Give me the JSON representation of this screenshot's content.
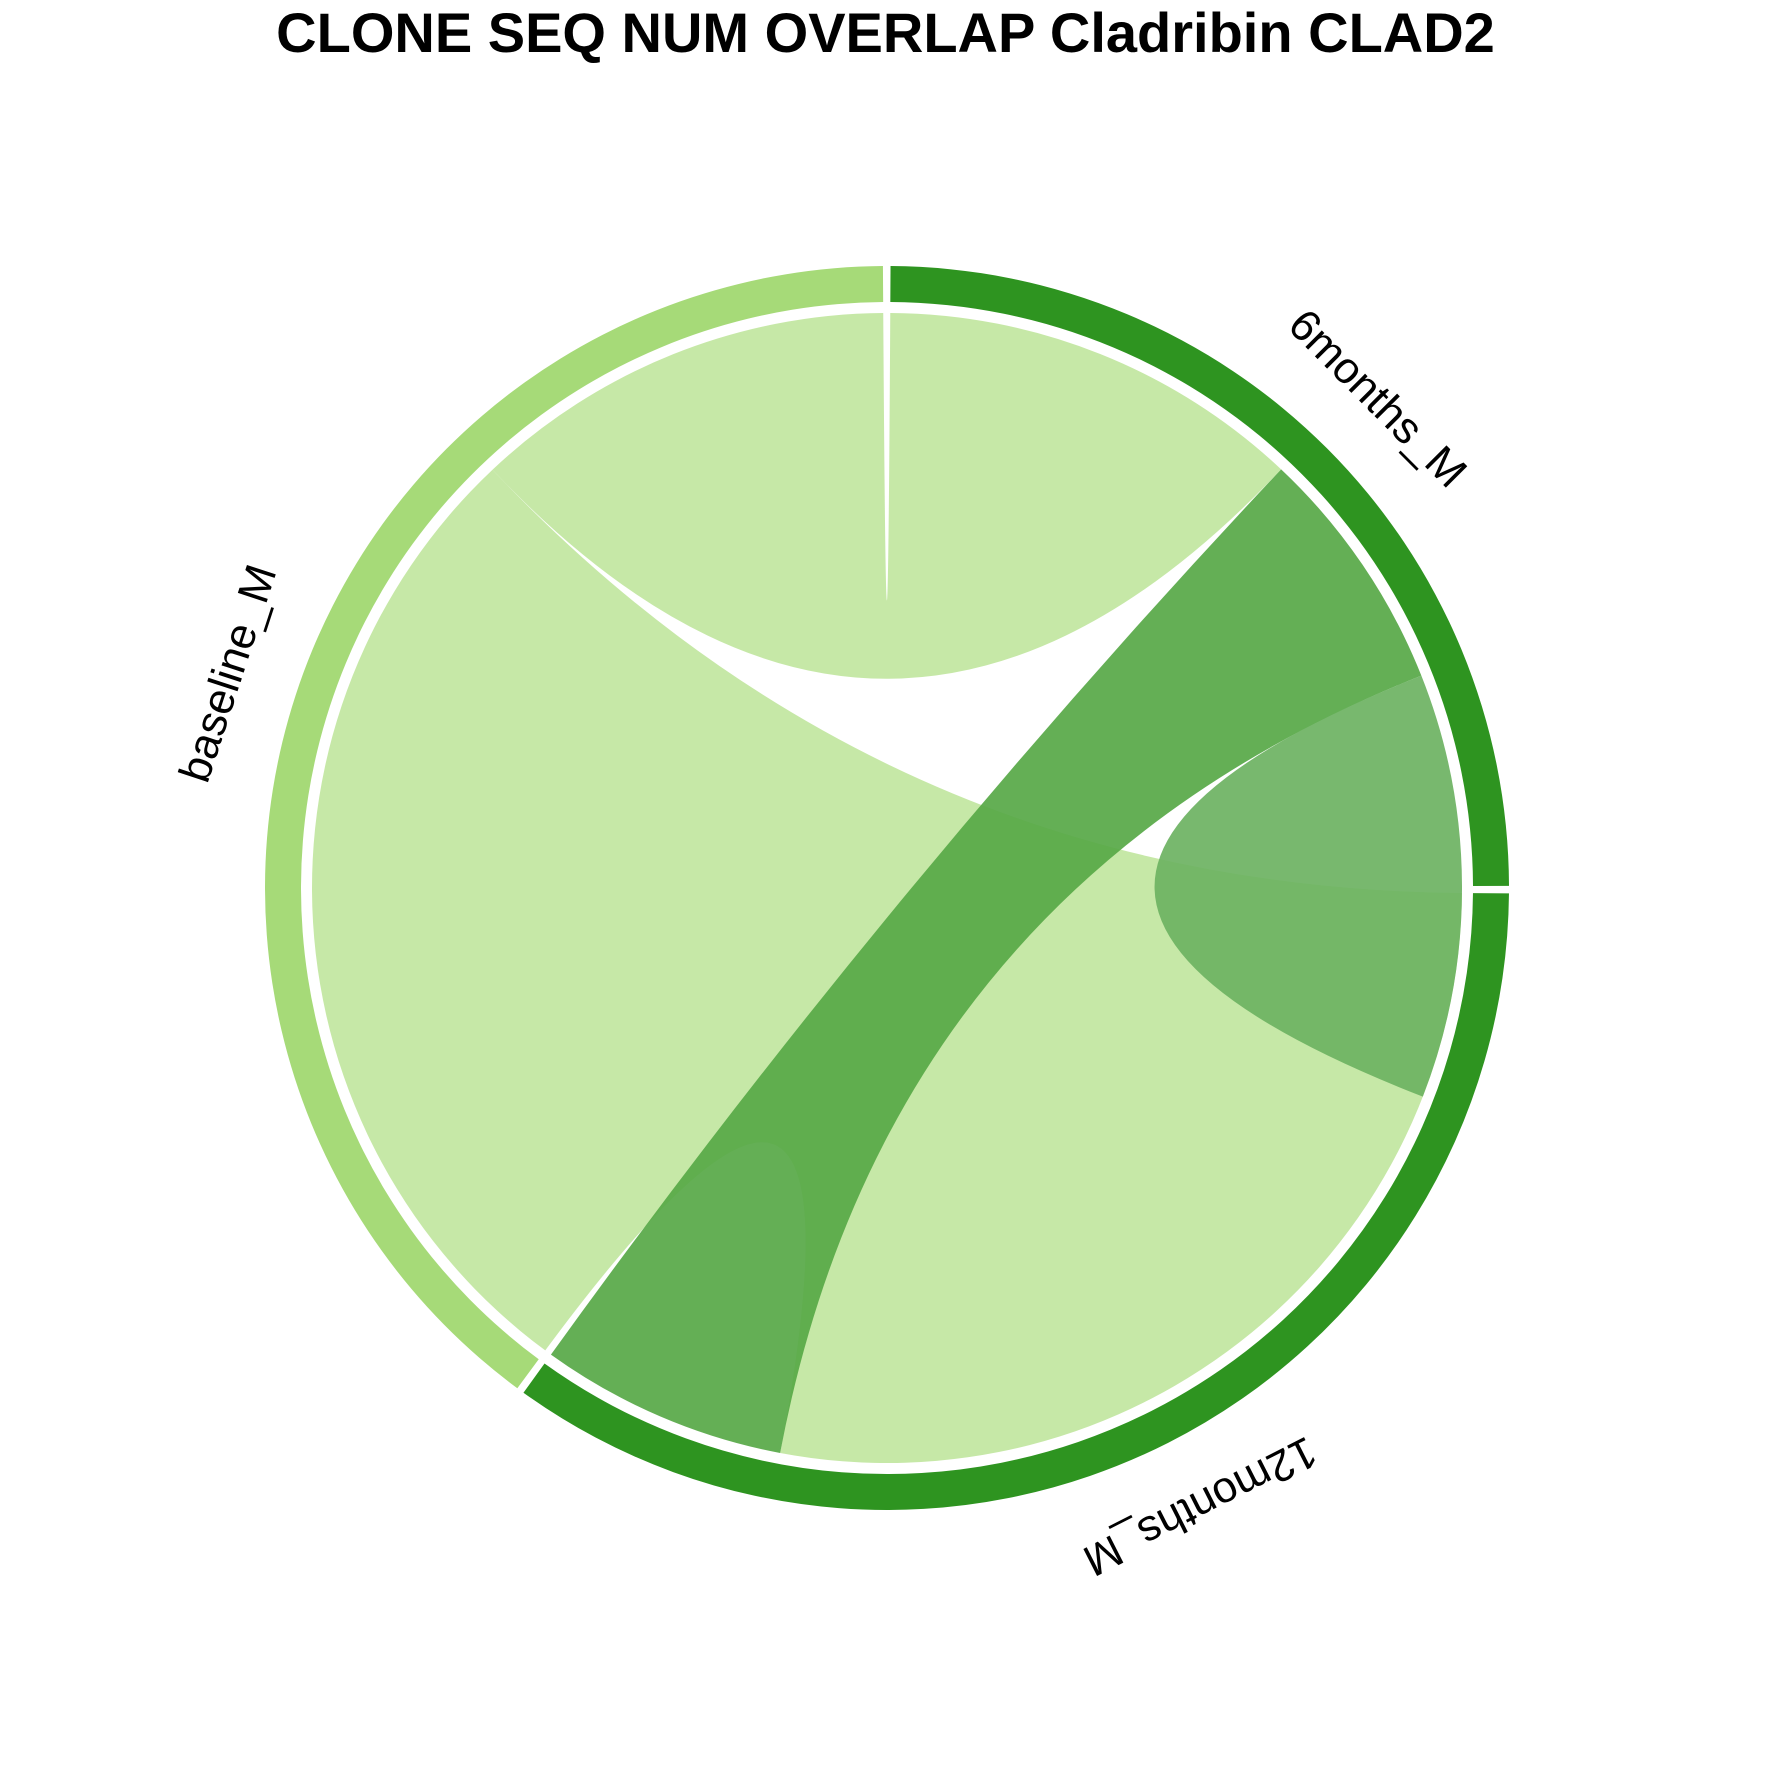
{
  "chart_data": {
    "type": "chord",
    "title": "CLONE SEQ NUM OVERLAP Cladribin CLAD2",
    "sectors": [
      {
        "name": "12months_M",
        "value": 35,
        "color": "#2e9420"
      },
      {
        "name": "baseline_M",
        "value": 40,
        "color": "#a6da78"
      },
      {
        "name": "6months_M",
        "value": 25,
        "color": "#2e9420"
      }
    ],
    "links": [
      {
        "from": "12months_M",
        "to": "baseline_M",
        "value": 28,
        "color": "#c1e69f"
      },
      {
        "from": "6months_M",
        "to": "baseline_M",
        "value": 12,
        "color": "#c1e69f"
      },
      {
        "from": "12months_M",
        "to": "6months_M",
        "value": 7,
        "color": "#57a846"
      },
      {
        "from": "6months_M",
        "to": "6months_M",
        "value": 6,
        "color": "#6cb262"
      }
    ]
  }
}
